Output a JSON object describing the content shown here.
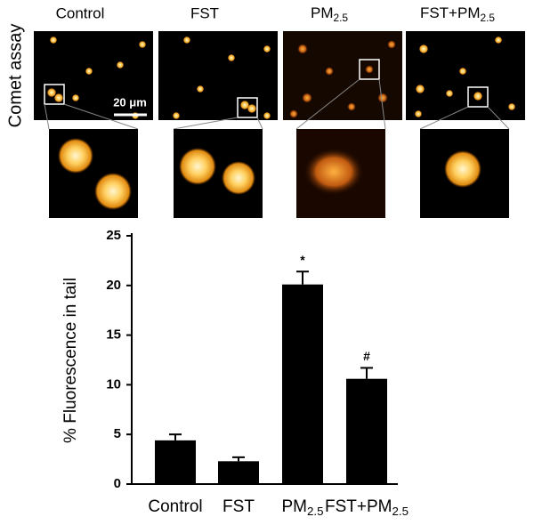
{
  "figure": {
    "row_label": "Comet assay",
    "scale_bar": "20 μm"
  },
  "chart_data": {
    "type": "bar",
    "y_label": "% Fluorescence in tail",
    "categories": [
      "Control",
      "FST",
      "PM2.5",
      "FST+PM2.5"
    ],
    "values": [
      4.4,
      2.3,
      20.1,
      10.6
    ],
    "errors": [
      0.6,
      0.4,
      1.3,
      1.1
    ],
    "annotations": [
      {
        "category": "PM2.5",
        "text": "*"
      },
      {
        "category": "FST+PM2.5",
        "text": "#"
      }
    ],
    "color": "#000000",
    "ylim": [
      0,
      25
    ],
    "yticks": [
      0,
      5,
      10,
      15,
      20,
      25
    ],
    "grid": false
  }
}
